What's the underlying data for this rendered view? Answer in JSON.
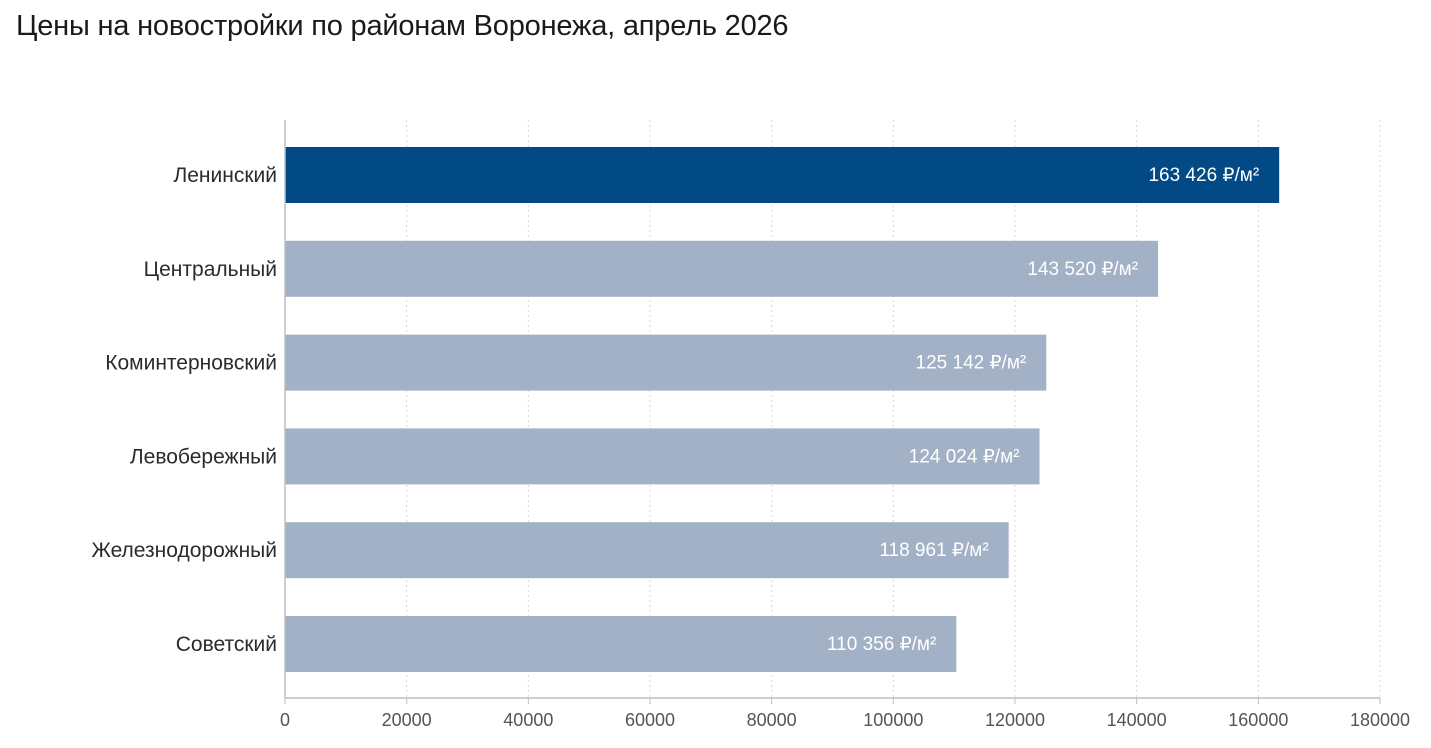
{
  "title": "Цены на новостройки по районам Воронежа, апрель 2026",
  "colors": {
    "highlight": "#024a86",
    "default": "#a3b1c6",
    "grid": "#d9d9d9",
    "axis": "#bfbfbf"
  },
  "chart_data": {
    "type": "bar",
    "orientation": "horizontal",
    "title": "Цены на новостройки по районам Воронежа, апрель 2026",
    "xlabel": "",
    "ylabel": "",
    "categories": [
      "Ленинский",
      "Центральный",
      "Коминтерновский",
      "Левобережный",
      "Железнодорожный",
      "Советский"
    ],
    "values": [
      163426,
      143520,
      125142,
      124024,
      118961,
      110356
    ],
    "data_labels": [
      "163 426 ₽/м²",
      "143 520 ₽/м²",
      "125 142 ₽/м²",
      "124 024 ₽/м²",
      "118 961 ₽/м²",
      "110 356 ₽/м²"
    ],
    "highlighted_category": "Ленинский",
    "xlim": [
      0,
      180000
    ],
    "x_ticks": [
      0,
      20000,
      40000,
      60000,
      80000,
      100000,
      120000,
      140000,
      160000,
      180000
    ],
    "x_tick_labels": [
      "0",
      "20000",
      "40000",
      "60000",
      "80000",
      "100000",
      "120000",
      "140000",
      "160000",
      "180000"
    ],
    "grid": "vertical dotted",
    "legend": "none"
  }
}
